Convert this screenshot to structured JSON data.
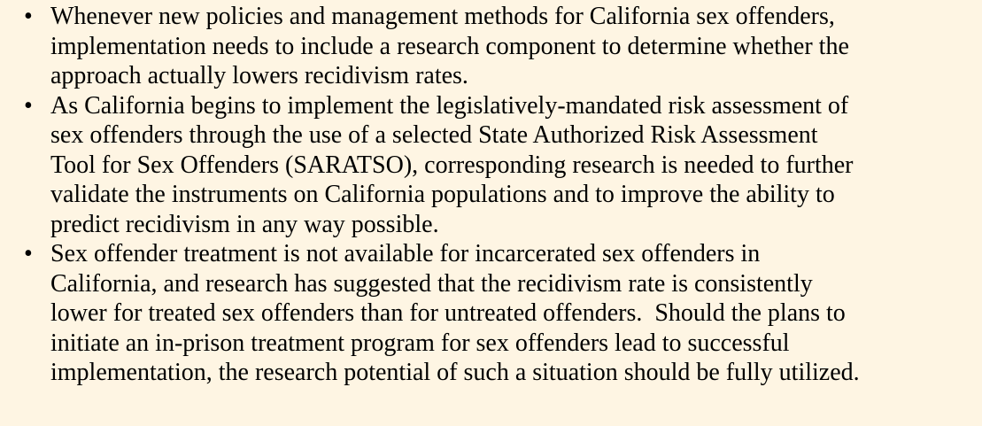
{
  "bullets": [
    {
      "lines": [
        "Whenever new policies and management methods for California sex offenders,",
        "implementation needs to include a research component to determine whether the",
        "approach actually lowers recidivism rates."
      ]
    },
    {
      "lines": [
        "As California begins to implement the legislatively-mandated risk assessment of",
        "sex offenders through the use of a selected State Authorized Risk Assessment",
        "Tool for Sex Offenders (SARATSO), corresponding research is needed to further",
        "validate the instruments on California populations and to improve the ability to",
        "predict recidivism in any way possible."
      ]
    },
    {
      "lines": [
        "Sex offender treatment is not available for incarcerated sex offenders in",
        "California, and research has suggested that the recidivism rate is consistently",
        "lower for treated sex offenders than for untreated offenders.  Should the plans to",
        "initiate an in-prison treatment program for sex offenders lead to successful",
        "implementation, the research potential of such a situation should be fully utilized."
      ]
    }
  ]
}
